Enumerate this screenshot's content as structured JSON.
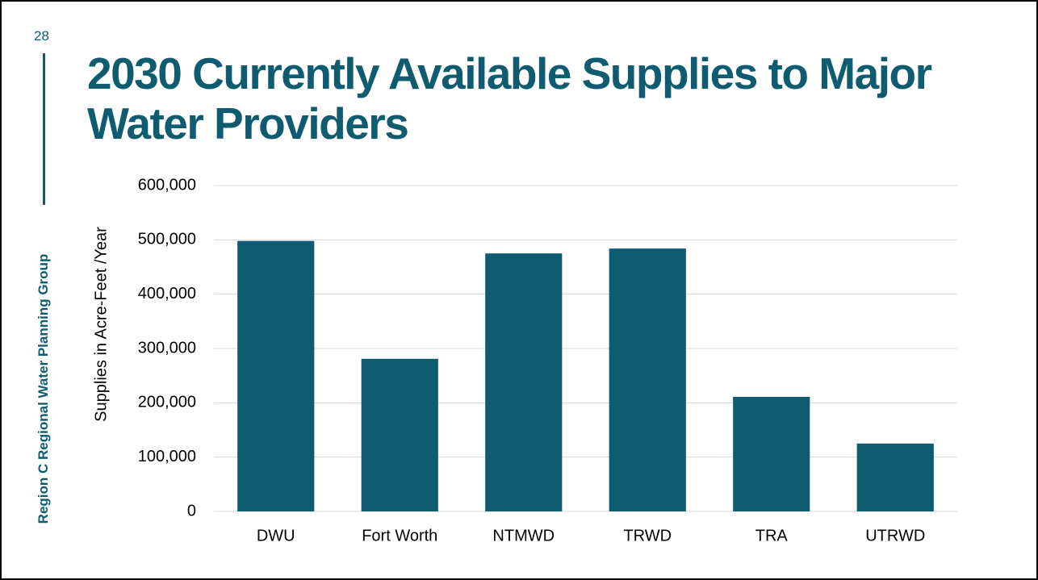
{
  "slide_number": "28",
  "sidebar": "Region C Regional Water Planning Group",
  "chart_data": {
    "type": "bar",
    "title": "2030 Currently Available Supplies to Major Water Providers",
    "y_label": "Supplies in Acre-Feet /Year",
    "categories": [
      "DWU",
      "Fort Worth",
      "NTMWD",
      "TRWD",
      "TRA",
      "UTRWD"
    ],
    "values": [
      498000,
      281000,
      475000,
      484000,
      211000,
      125000
    ],
    "color": "#0f5c70",
    "ylim": [
      0,
      600000
    ],
    "yticks": [
      0,
      {
        "value": 100000,
        "label": "100,000"
      },
      {
        "value": 200000,
        "label": "200,000"
      },
      {
        "value": 300000,
        "label": "300,000"
      },
      {
        "value": 400000,
        "label": "400,000"
      },
      {
        "value": 500000,
        "label": "500,000"
      },
      {
        "value": 600000,
        "label": "600,000"
      }
    ],
    "grid": true
  }
}
